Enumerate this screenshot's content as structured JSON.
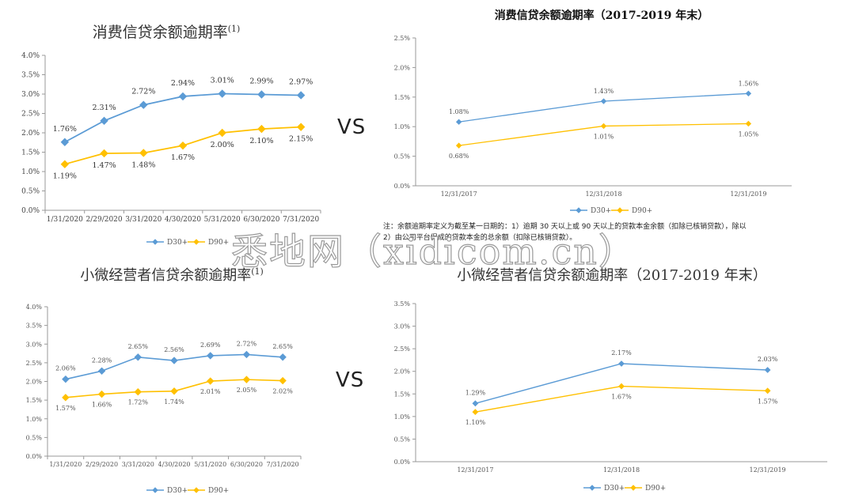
{
  "vs_labels": [
    "VS",
    "VS"
  ],
  "note": {
    "line1": "注：余额逾期率定义为截至某一日期的：1）逾期 30 天以上或 90 天以上的贷款本金余额（扣除已核销贷款），除以",
    "line2": "2）由公司平台促成的贷款本金的总余额（扣除已核销贷款）。"
  },
  "watermark": "悉地网（xidicom.cn）",
  "colors": {
    "d30": "#5b9bd5",
    "d90": "#ffc000"
  },
  "chart_data": [
    {
      "type": "line",
      "title": "消费信贷余额逾期率",
      "title_sup": "(1)",
      "categories": [
        "1/31/2020",
        "2/29/2020",
        "3/31/2020",
        "4/30/2020",
        "5/31/2020",
        "6/30/2020",
        "7/31/2020"
      ],
      "series": [
        {
          "name": "D30+",
          "values": [
            1.76,
            2.31,
            2.72,
            2.94,
            3.01,
            2.99,
            2.97
          ],
          "labels": [
            "1.76%",
            "2.31%",
            "2.72%",
            "2.94%",
            "3.01%",
            "2.99%",
            "2.97%"
          ]
        },
        {
          "name": "D90+",
          "values": [
            1.19,
            1.47,
            1.48,
            1.67,
            2.0,
            2.1,
            2.15
          ],
          "labels": [
            "1.19%",
            "1.47%",
            "1.48%",
            "1.67%",
            "2.00%",
            "2.10%",
            "2.15%"
          ]
        }
      ],
      "ylim": [
        0,
        4.0
      ],
      "yticks": [
        "0.0%",
        "0.5%",
        "1.0%",
        "1.5%",
        "2.0%",
        "2.5%",
        "3.0%",
        "3.5%",
        "4.0%"
      ],
      "grid": false,
      "legend": "bottom"
    },
    {
      "type": "line",
      "title": "消费信贷余额逾期率（2017-2019 年末）",
      "categories": [
        "12/31/2017",
        "12/31/2018",
        "12/31/2019"
      ],
      "series": [
        {
          "name": "D30+",
          "values": [
            1.08,
            1.43,
            1.56
          ],
          "labels": [
            "1.08%",
            "1.43%",
            "1.56%"
          ]
        },
        {
          "name": "D90+",
          "values": [
            0.68,
            1.01,
            1.05
          ],
          "labels": [
            "0.68%",
            "1.01%",
            "1.05%"
          ]
        }
      ],
      "ylim": [
        0,
        2.5
      ],
      "yticks": [
        "0.0%",
        "0.5%",
        "1.0%",
        "1.5%",
        "2.0%",
        "2.5%"
      ],
      "grid": false,
      "legend": "bottom"
    },
    {
      "type": "line",
      "title": "小微经营者信贷余额逾期率",
      "title_sup": "(1)",
      "categories": [
        "1/31/2020",
        "2/29/2020",
        "3/31/2020",
        "4/30/2020",
        "5/31/2020",
        "6/30/2020",
        "7/31/2020"
      ],
      "series": [
        {
          "name": "D30+",
          "values": [
            2.06,
            2.28,
            2.65,
            2.56,
            2.69,
            2.72,
            2.65
          ],
          "labels": [
            "2.06%",
            "2.28%",
            "2.65%",
            "2.56%",
            "2.69%",
            "2.72%",
            "2.65%"
          ]
        },
        {
          "name": "D90+",
          "values": [
            1.57,
            1.66,
            1.72,
            1.74,
            2.01,
            2.05,
            2.02
          ],
          "labels": [
            "1.57%",
            "1.66%",
            "1.72%",
            "1.74%",
            "2.01%",
            "2.05%",
            "2.02%"
          ]
        }
      ],
      "ylim": [
        0,
        4.0
      ],
      "yticks": [
        "0.0%",
        "0.5%",
        "1.0%",
        "1.5%",
        "2.0%",
        "2.5%",
        "3.0%",
        "3.5%",
        "4.0%"
      ],
      "grid": false,
      "legend": "bottom"
    },
    {
      "type": "line",
      "title": "小微经营者信贷余额逾期率（2017-2019 年末）",
      "categories": [
        "12/31/2017",
        "12/31/2018",
        "12/31/2019"
      ],
      "series": [
        {
          "name": "D30+",
          "values": [
            1.29,
            2.17,
            2.03
          ],
          "labels": [
            "1.29%",
            "2.17%",
            "2.03%"
          ]
        },
        {
          "name": "D90+",
          "values": [
            1.1,
            1.67,
            1.57
          ],
          "labels": [
            "1.10%",
            "1.67%",
            "1.57%"
          ]
        }
      ],
      "ylim": [
        0,
        3.5
      ],
      "yticks": [
        "0.0%",
        "0.5%",
        "1.0%",
        "1.5%",
        "2.0%",
        "2.5%",
        "3.0%",
        "3.5%"
      ],
      "grid": false,
      "legend": "bottom"
    }
  ]
}
